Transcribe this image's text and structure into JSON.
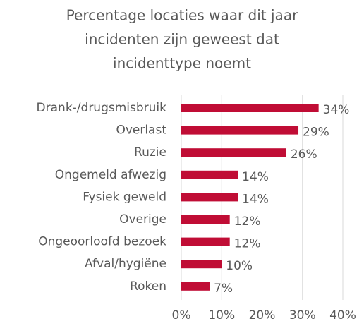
{
  "chart_data": {
    "type": "bar",
    "orientation": "horizontal",
    "title": [
      "Percentage locaties waar dit jaar",
      "incidenten zijn geweest dat",
      "incidenttype noemt"
    ],
    "categories": [
      "Drank-/drugsmisbruik",
      "Overlast",
      "Ruzie",
      "Ongemeld afwezig",
      "Fysiek geweld",
      "Overige",
      "Ongeoorloofd bezoek",
      "Afval/hygiëne",
      "Roken"
    ],
    "values": [
      34,
      29,
      26,
      14,
      14,
      12,
      12,
      10,
      7
    ],
    "value_labels": [
      "34%",
      "29%",
      "26%",
      "14%",
      "14%",
      "12%",
      "12%",
      "10%",
      "7%"
    ],
    "color": "#c00d35",
    "xlim": [
      0,
      40
    ],
    "xticks": [
      {
        "value": 0,
        "label": "0%"
      },
      {
        "value": 10,
        "label": "10%"
      },
      {
        "value": 20,
        "label": "20%"
      },
      {
        "value": 30,
        "label": "30%"
      },
      {
        "value": 40,
        "label": "40%"
      }
    ],
    "grid": true
  }
}
